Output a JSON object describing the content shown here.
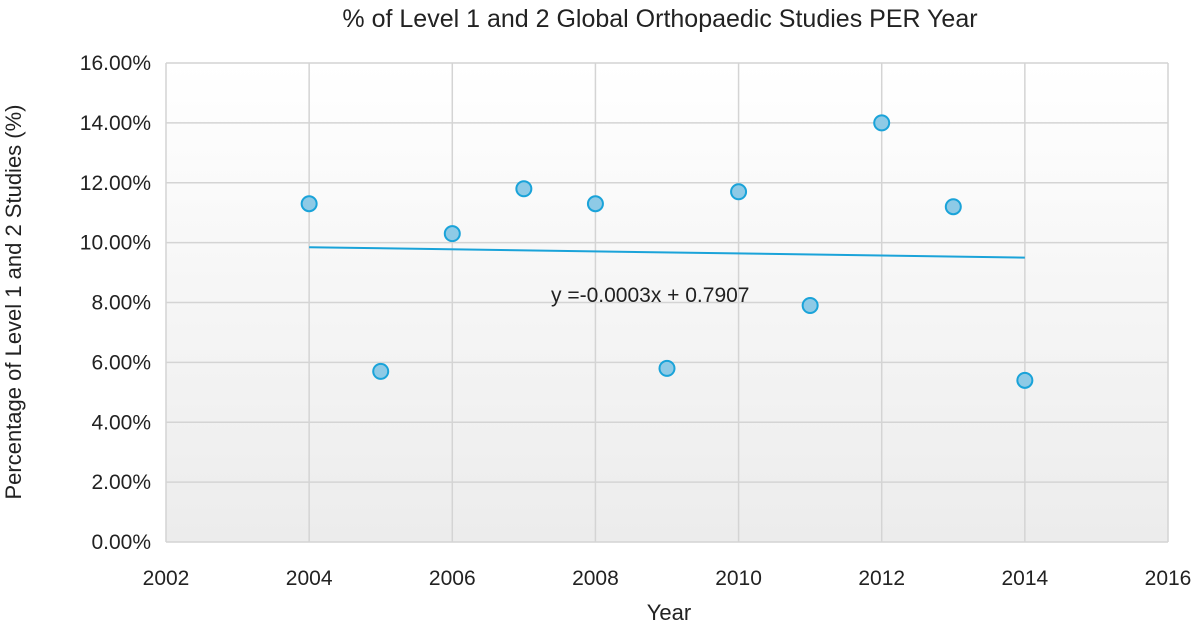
{
  "chart_data": {
    "type": "scatter",
    "title": "% of Level 1 and 2 Global Orthopaedic Studies PER Year",
    "xlabel": "Year",
    "ylabel": "Percentage of Level 1 and 2 Studies (%)",
    "xlim": [
      2002,
      2016
    ],
    "ylim": [
      0,
      0.16
    ],
    "x_ticks": [
      "2002",
      "2004",
      "2006",
      "2008",
      "2010",
      "2012",
      "2014",
      "2016"
    ],
    "y_ticks": [
      "0.00%",
      "2.00%",
      "4.00%",
      "6.00%",
      "8.00%",
      "10.00%",
      "12.00%",
      "14.00%",
      "16.00%"
    ],
    "grid": true,
    "series": [
      {
        "x": [
          2004,
          2005,
          2006,
          2007,
          2008,
          2009,
          2010,
          2011,
          2012,
          2013,
          2014
        ],
        "y": [
          0.113,
          0.057,
          0.103,
          0.118,
          0.113,
          0.058,
          0.117,
          0.079,
          0.14,
          0.112,
          0.054
        ]
      }
    ],
    "trendline": {
      "equation": "y =-0.0003x + 0.7907",
      "slope": -0.0003,
      "intercept": 0.7907,
      "x_range": [
        2004,
        2014
      ]
    },
    "marker_color": "#8ecae6",
    "marker_edge_color": "#1aa3d9",
    "trend_color": "#1aa3d9"
  }
}
